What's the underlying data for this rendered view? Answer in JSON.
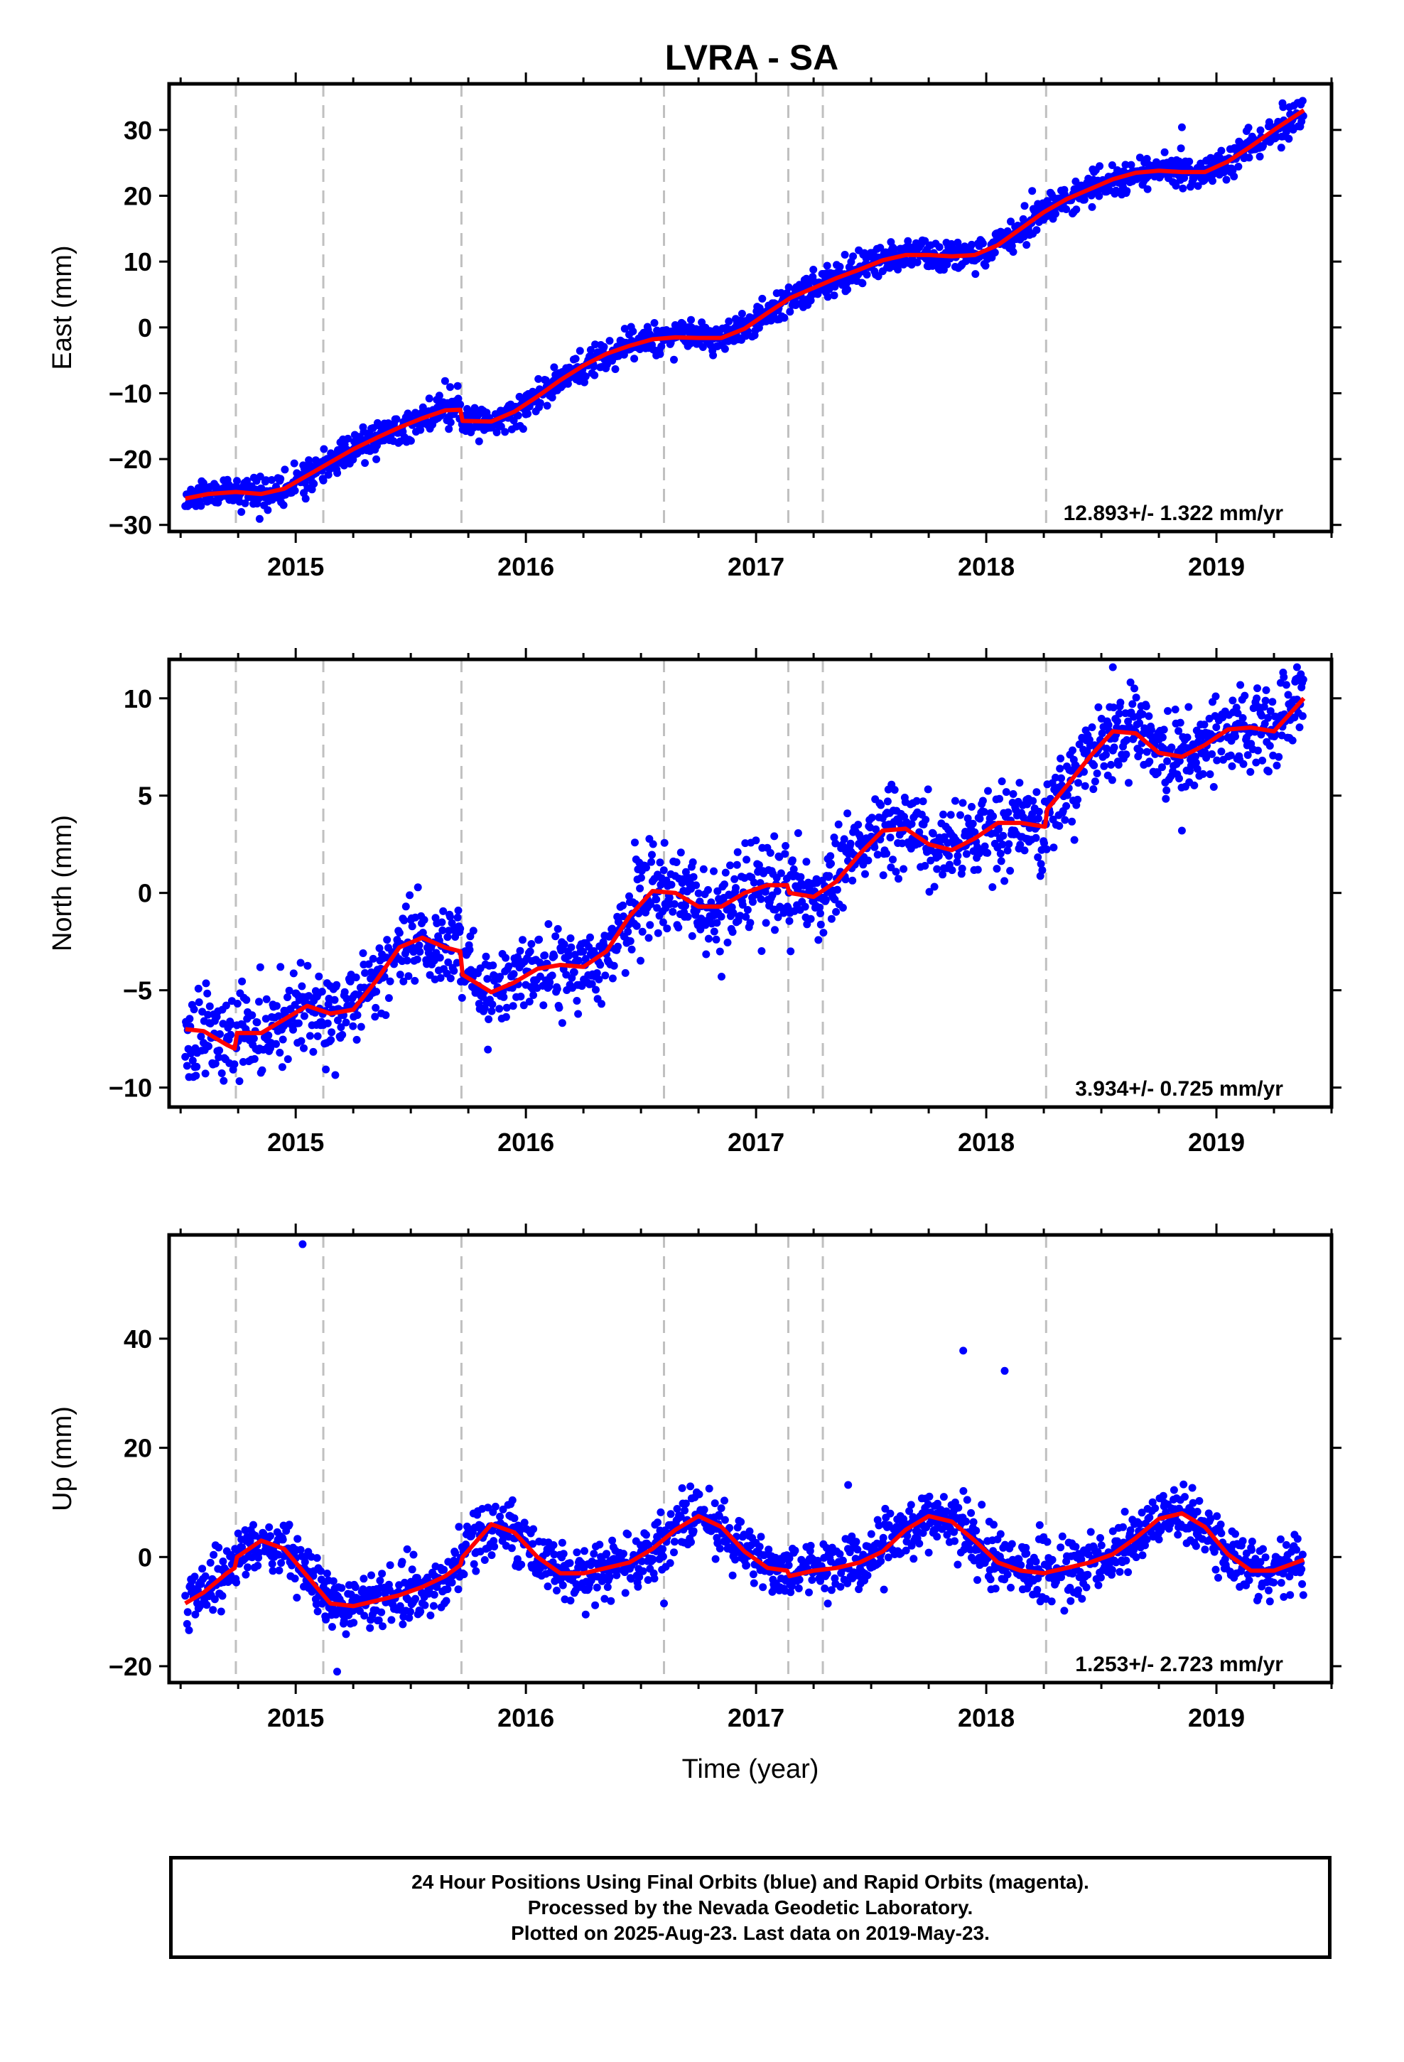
{
  "title": "LVRA - SA",
  "footer": {
    "line1": "24 Hour Positions Using Final Orbits (blue) and Rapid Orbits (magenta).",
    "line2": "Processed by the Nevada Geodetic Laboratory.",
    "line3": "Plotted on 2025-Aug-23. Last data on 2019-May-23."
  },
  "colors": {
    "points": "#0000ff",
    "fit": "#ff0000",
    "dashed": "#c0c0c0",
    "frame": "#000000"
  },
  "chart_data": [
    {
      "type": "scatter",
      "ylabel": "East (mm)",
      "xlabel": "",
      "xlim": [
        2014.45,
        2019.5
      ],
      "ylim": [
        -31,
        37
      ],
      "yticks": [
        -30,
        -20,
        -10,
        0,
        10,
        20,
        30
      ],
      "xticks": [
        2015,
        2016,
        2017,
        2018,
        2019
      ],
      "rate": "12.893+/- 1.322 mm/yr",
      "breaks": [
        2014.74,
        2015.12,
        2015.72,
        2016.6,
        2017.14,
        2017.29,
        2018.26
      ],
      "fit": {
        "x": [
          2014.52,
          2014.62,
          2014.74,
          2014.85,
          2014.95,
          2015.05,
          2015.15,
          2015.25,
          2015.35,
          2015.45,
          2015.55,
          2015.65,
          2015.715,
          2015.725,
          2015.85,
          2015.95,
          2016.05,
          2016.15,
          2016.25,
          2016.35,
          2016.45,
          2016.55,
          2016.65,
          2016.75,
          2016.85,
          2016.95,
          2017.05,
          2017.15,
          2017.25,
          2017.35,
          2017.45,
          2017.55,
          2017.65,
          2017.75,
          2017.85,
          2017.95,
          2018.05,
          2018.15,
          2018.25,
          2018.35,
          2018.45,
          2018.55,
          2018.65,
          2018.75,
          2018.85,
          2018.95,
          2019.05,
          2019.15,
          2019.25,
          2019.38
        ],
        "y": [
          -26.0,
          -25.3,
          -25.0,
          -25.3,
          -24.5,
          -22.5,
          -20.5,
          -18.5,
          -16.8,
          -15.2,
          -13.8,
          -12.6,
          -12.5,
          -14.2,
          -14.3,
          -12.8,
          -10.5,
          -8.0,
          -5.8,
          -4.0,
          -2.8,
          -1.8,
          -1.5,
          -1.6,
          -1.6,
          -0.2,
          2.2,
          4.5,
          6.0,
          7.5,
          8.8,
          10.2,
          11.0,
          11.0,
          10.8,
          11.0,
          12.5,
          15.0,
          17.5,
          19.5,
          21.0,
          22.5,
          23.5,
          23.8,
          23.6,
          23.6,
          25.2,
          27.5,
          30.0,
          33.0
        ]
      },
      "scatter": {
        "seed": 11,
        "noise": 1.2,
        "outliers": [
          [
            2018.85,
            30.4
          ]
        ]
      }
    },
    {
      "type": "scatter",
      "ylabel": "North (mm)",
      "xlabel": "",
      "xlim": [
        2014.45,
        2019.5
      ],
      "ylim": [
        -11,
        12
      ],
      "yticks": [
        -10,
        -5,
        0,
        5,
        10
      ],
      "xticks": [
        2015,
        2016,
        2017,
        2018,
        2019
      ],
      "rate": "3.934+/- 0.725 mm/yr",
      "breaks": [
        2014.74,
        2015.12,
        2015.72,
        2016.6,
        2017.14,
        2017.29,
        2018.26
      ],
      "fit": {
        "x": [
          2014.52,
          2014.6,
          2014.7,
          2014.735,
          2014.745,
          2014.85,
          2014.95,
          2015.05,
          2015.15,
          2015.25,
          2015.35,
          2015.45,
          2015.55,
          2015.65,
          2015.715,
          2015.725,
          2015.85,
          2015.95,
          2016.05,
          2016.15,
          2016.25,
          2016.35,
          2016.45,
          2016.55,
          2016.65,
          2016.75,
          2016.85,
          2016.95,
          2017.05,
          2017.135,
          2017.145,
          2017.25,
          2017.35,
          2017.45,
          2017.55,
          2017.65,
          2017.75,
          2017.85,
          2017.95,
          2018.05,
          2018.15,
          2018.255,
          2018.265,
          2018.35,
          2018.45,
          2018.55,
          2018.65,
          2018.75,
          2018.85,
          2018.95,
          2019.05,
          2019.15,
          2019.25,
          2019.38
        ],
        "y": [
          -7.0,
          -7.1,
          -7.8,
          -8.0,
          -7.2,
          -7.2,
          -6.5,
          -5.8,
          -6.2,
          -6.0,
          -4.5,
          -2.8,
          -2.3,
          -2.8,
          -3.0,
          -4.2,
          -5.1,
          -4.6,
          -3.9,
          -3.7,
          -3.8,
          -3.0,
          -1.2,
          0.1,
          0.0,
          -0.7,
          -0.7,
          0.0,
          0.4,
          0.4,
          0.0,
          -0.2,
          0.6,
          2.0,
          3.2,
          3.3,
          2.5,
          2.2,
          2.8,
          3.6,
          3.6,
          3.4,
          4.3,
          5.5,
          7.0,
          8.3,
          8.2,
          7.2,
          7.0,
          7.6,
          8.4,
          8.5,
          8.3,
          10.0
        ]
      },
      "scatter": {
        "seed": 23,
        "noise": 1.1,
        "outliers": [
          [
            2018.85,
            3.2
          ],
          [
            2018.55,
            11.6
          ],
          [
            2019.35,
            11.6
          ],
          [
            2016.85,
            -4.3
          ],
          [
            2017.15,
            -3.0
          ]
        ]
      }
    },
    {
      "type": "scatter",
      "ylabel": "Up (mm)",
      "xlabel": "Time (year)",
      "xlim": [
        2014.45,
        2019.5
      ],
      "ylim": [
        -23,
        59
      ],
      "yticks": [
        -20,
        0,
        20,
        40
      ],
      "xticks": [
        2015,
        2016,
        2017,
        2018,
        2019
      ],
      "rate": "1.253+/- 2.723 mm/yr",
      "breaks": [
        2014.74,
        2015.12,
        2015.72,
        2016.6,
        2017.14,
        2017.29,
        2018.26
      ],
      "fit": {
        "x": [
          2014.52,
          2014.6,
          2014.7,
          2014.735,
          2014.745,
          2014.85,
          2014.95,
          2015.05,
          2015.15,
          2015.25,
          2015.35,
          2015.45,
          2015.55,
          2015.65,
          2015.715,
          2015.725,
          2015.85,
          2015.95,
          2016.05,
          2016.15,
          2016.25,
          2016.35,
          2016.45,
          2016.55,
          2016.65,
          2016.75,
          2016.85,
          2016.95,
          2017.05,
          2017.135,
          2017.145,
          2017.25,
          2017.35,
          2017.45,
          2017.55,
          2017.65,
          2017.75,
          2017.85,
          2017.95,
          2018.05,
          2018.15,
          2018.255,
          2018.265,
          2018.35,
          2018.45,
          2018.55,
          2018.65,
          2018.75,
          2018.85,
          2018.95,
          2019.05,
          2019.15,
          2019.25,
          2019.38
        ],
        "y": [
          -8.5,
          -6.5,
          -3.0,
          -2.0,
          0.0,
          3.0,
          1.5,
          -3.5,
          -8.5,
          -9.0,
          -8.0,
          -7.0,
          -5.5,
          -3.5,
          -1.5,
          0.0,
          6.0,
          4.5,
          0.0,
          -3.0,
          -3.0,
          -2.0,
          -1.0,
          1.5,
          5.0,
          7.5,
          5.5,
          1.0,
          -2.0,
          -2.5,
          -3.5,
          -2.5,
          -2.0,
          -1.0,
          1.0,
          5.0,
          7.5,
          6.5,
          3.0,
          -1.0,
          -2.5,
          -3.0,
          -2.8,
          -2.0,
          -1.0,
          0.5,
          3.5,
          7.0,
          8.0,
          5.5,
          0.5,
          -2.5,
          -2.5,
          -0.5
        ]
      },
      "scatter": {
        "seed": 37,
        "noise": 2.6,
        "outliers": [
          [
            2015.03,
            57.3
          ],
          [
            2017.9,
            37.8
          ],
          [
            2018.08,
            34.1
          ],
          [
            2015.18,
            -21.0
          ],
          [
            2017.4,
            13.2
          ],
          [
            2016.6,
            -8.5
          ]
        ]
      }
    }
  ]
}
